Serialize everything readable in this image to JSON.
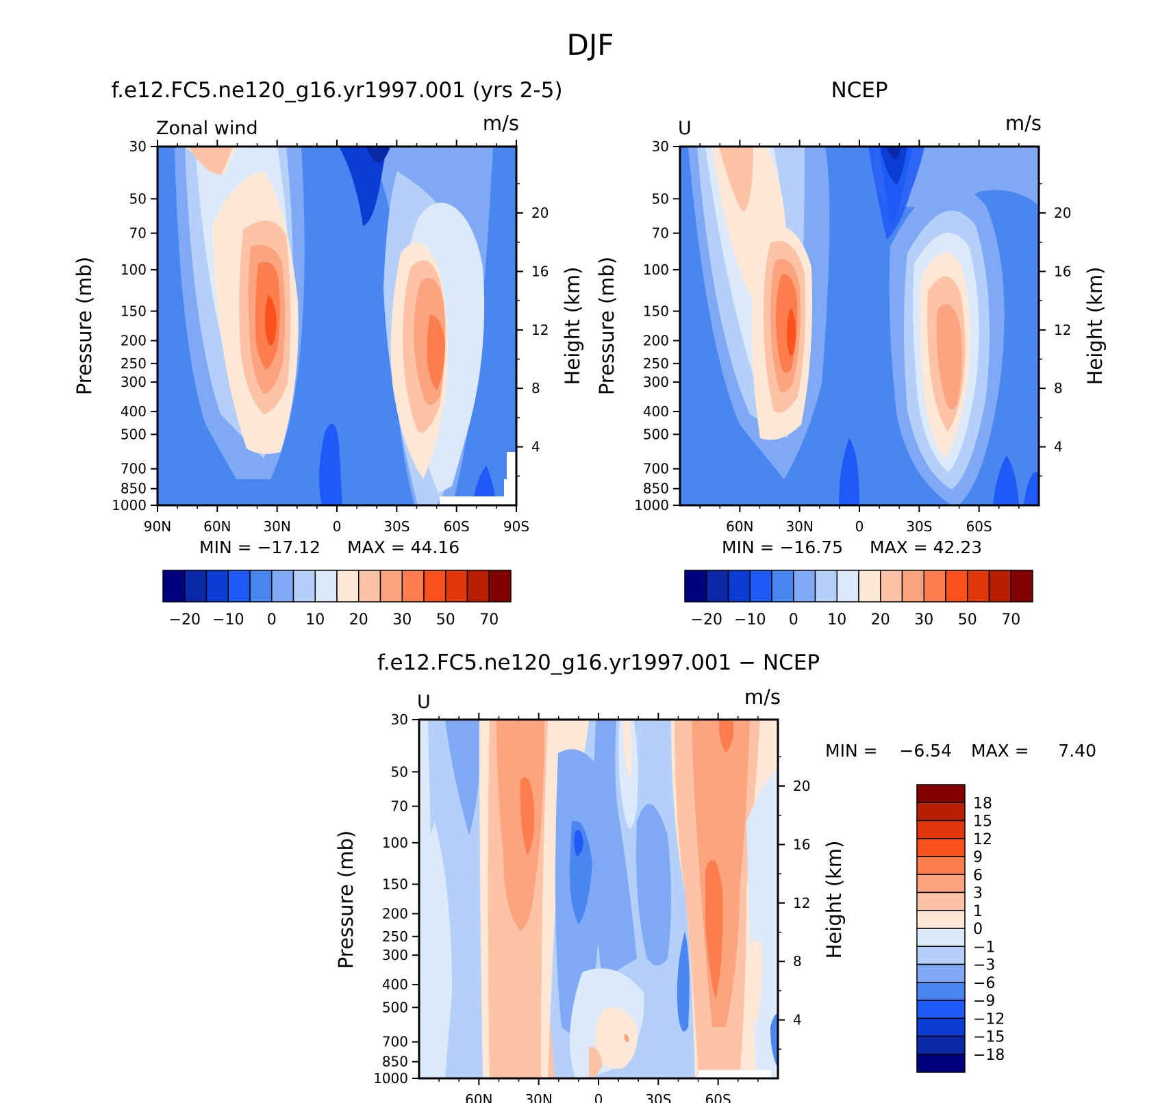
{
  "figure": {
    "title": "DJF"
  },
  "colors": {
    "abs": [
      "#00007f",
      "#0a28a8",
      "#0a3ed3",
      "#1e5af5",
      "#4a86f0",
      "#7fa8f5",
      "#b4cff8",
      "#dbe9fa",
      "#fde8d8",
      "#fcc3a6",
      "#fca47f",
      "#fc7e4e",
      "#f9521c",
      "#e0380a",
      "#b81e00",
      "#820000"
    ],
    "diff": [
      "#00007f",
      "#0a28a8",
      "#0a3ed3",
      "#1e5af5",
      "#4a86f0",
      "#7fa8f5",
      "#b4cff8",
      "#dbe9fa",
      "#fde8d8",
      "#fcc3a6",
      "#fca47f",
      "#fc7e4e",
      "#f9521c",
      "#e0380a",
      "#b81e00",
      "#820000"
    ]
  },
  "chart_data": [
    {
      "type": "heatmap",
      "title": "f.e12.FC5.ne120_g16.yr1997.001 (yrs 2-5)",
      "left_label": "Zonal wind",
      "units": "m/s",
      "ylabel": "Pressure (mb)",
      "y2label": "Height (km)",
      "x_ticks": [
        "90N",
        "60N",
        "30N",
        "0",
        "30S",
        "60S",
        "90S"
      ],
      "y_ticks": [
        "30",
        "50",
        "70",
        "100",
        "150",
        "200",
        "250",
        "300",
        "400",
        "500",
        "700",
        "850",
        "1000"
      ],
      "y2_ticks": [
        "20",
        "16",
        "12",
        "8",
        "4"
      ],
      "min_text": "MIN = −17.12",
      "max_text": "MAX =  44.16",
      "min": -17.12,
      "max": 44.16,
      "colorbar_labels": [
        "−20",
        "−10",
        "0",
        "10",
        "20",
        "30",
        "50",
        "70"
      ],
      "jets": [
        {
          "lat": 32,
          "pressure": 200,
          "speed": 44
        },
        {
          "lat": -49,
          "pressure": 200,
          "speed": 36
        }
      ]
    },
    {
      "type": "heatmap",
      "title": "NCEP",
      "left_label": "U",
      "units": "m/s",
      "ylabel": "Pressure (mb)",
      "y2label": "Height (km)",
      "x_ticks": [
        "60N",
        "30N",
        "0",
        "30S",
        "60S"
      ],
      "y_ticks": [
        "30",
        "50",
        "70",
        "100",
        "150",
        "200",
        "250",
        "300",
        "400",
        "500",
        "700",
        "850",
        "1000"
      ],
      "y2_ticks": [
        "20",
        "16",
        "12",
        "8",
        "4"
      ],
      "min_text": "MIN = −16.75",
      "max_text": "MAX =  42.23",
      "min": -16.75,
      "max": 42.23,
      "colorbar_labels": [
        "−20",
        "−10",
        "0",
        "10",
        "20",
        "30",
        "50",
        "70"
      ],
      "jets": [
        {
          "lat": 30,
          "pressure": 200,
          "speed": 42
        },
        {
          "lat": -47,
          "pressure": 200,
          "speed": 30
        }
      ]
    },
    {
      "type": "heatmap",
      "title": "f.e12.FC5.ne120_g16.yr1997.001 − NCEP",
      "left_label": "U",
      "units": "m/s",
      "ylabel": "Pressure (mb)",
      "y2label": "Height (km)",
      "x_ticks": [
        "60N",
        "30N",
        "0",
        "30S",
        "60S"
      ],
      "y_ticks": [
        "30",
        "50",
        "70",
        "100",
        "150",
        "200",
        "250",
        "300",
        "400",
        "500",
        "700",
        "850",
        "1000"
      ],
      "y2_ticks": [
        "20",
        "16",
        "12",
        "8",
        "4"
      ],
      "min_text": "MIN =",
      "min_value": "−6.54",
      "max_text": "MAX =",
      "max_value": "7.40",
      "min": -6.54,
      "max": 7.4,
      "colorbar_labels": [
        "18",
        "15",
        "12",
        "9",
        "6",
        "3",
        "1",
        "0",
        "−1",
        "−3",
        "−6",
        "−9",
        "−12",
        "−15",
        "−18"
      ]
    }
  ]
}
